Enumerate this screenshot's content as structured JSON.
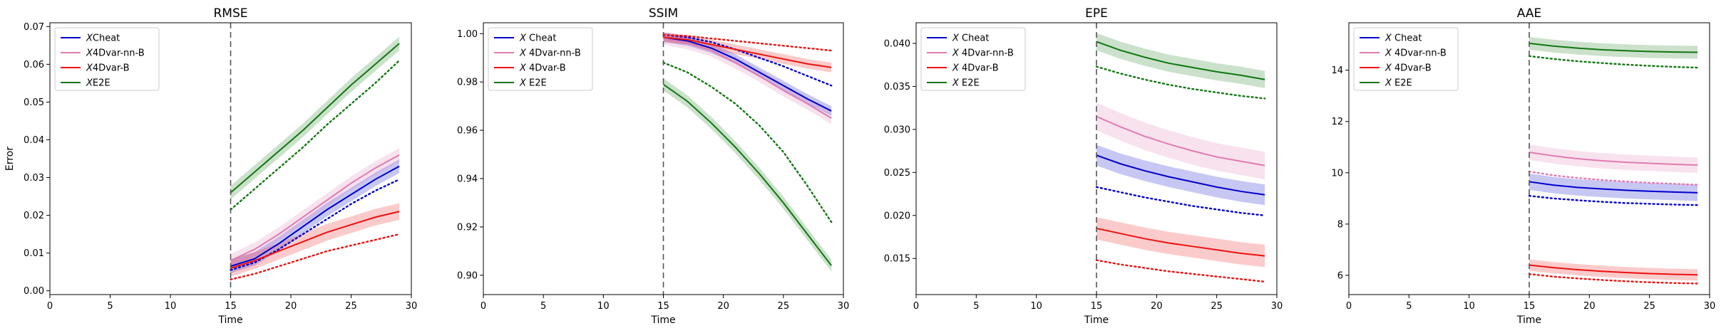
{
  "chart_data": [
    {
      "type": "line",
      "title": "RMSE",
      "xlabel": "Time",
      "ylabel": "Error",
      "xlim": [
        0,
        30
      ],
      "ylim": [
        -0.001,
        0.071
      ],
      "xticks": [
        0,
        5,
        10,
        15,
        20,
        25,
        30
      ],
      "yticks": [
        0.0,
        0.01,
        0.02,
        0.03,
        0.04,
        0.05,
        0.06,
        0.07
      ],
      "ytick_labels": [
        "0.00",
        "0.01",
        "0.02",
        "0.03",
        "0.04",
        "0.05",
        "0.06",
        "0.07"
      ],
      "vline_x": 15,
      "legend_position": "upper-left",
      "x": [
        15,
        17,
        19,
        21,
        23,
        25,
        27,
        29
      ],
      "series": [
        {
          "name": "XCheat",
          "italic_prefix": "X",
          "label_rest": "Cheat",
          "color": "#0000cc",
          "values": [
            0.0065,
            0.0085,
            0.0125,
            0.017,
            0.0215,
            0.0255,
            0.0295,
            0.033
          ],
          "band": 0.0018,
          "dotted": [
            0.0055,
            0.0075,
            0.011,
            0.015,
            0.019,
            0.023,
            0.0265,
            0.0295
          ]
        },
        {
          "name": "X4Dvar-nn-B",
          "italic_prefix": "X",
          "label_rest": "4Dvar-nn-B",
          "color": "#e07bb2",
          "values": [
            0.008,
            0.011,
            0.015,
            0.0195,
            0.024,
            0.0285,
            0.0325,
            0.036
          ],
          "band": 0.0018,
          "dotted": []
        },
        {
          "name": "X4Dvar-B",
          "italic_prefix": "X",
          "label_rest": "4Dvar-B",
          "color": "#ee1111",
          "values": [
            0.006,
            0.008,
            0.0105,
            0.013,
            0.0155,
            0.0175,
            0.0195,
            0.021
          ],
          "band": 0.0022,
          "dotted": [
            0.003,
            0.0045,
            0.0065,
            0.0085,
            0.0105,
            0.012,
            0.0135,
            0.015
          ]
        },
        {
          "name": "XE2E",
          "italic_prefix": "X",
          "label_rest": "E2E",
          "color": "#117711",
          "values": [
            0.026,
            0.0315,
            0.037,
            0.0425,
            0.0485,
            0.0545,
            0.06,
            0.0655
          ],
          "band": 0.0018,
          "dotted": [
            0.0215,
            0.027,
            0.0325,
            0.038,
            0.044,
            0.0495,
            0.055,
            0.061
          ]
        }
      ]
    },
    {
      "type": "line",
      "title": "SSIM",
      "xlabel": "Time",
      "ylabel": "",
      "xlim": [
        0,
        30
      ],
      "ylim": [
        0.892,
        1.0045
      ],
      "xticks": [
        0,
        5,
        10,
        15,
        20,
        25,
        30
      ],
      "yticks": [
        0.9,
        0.92,
        0.94,
        0.96,
        0.98,
        1.0
      ],
      "ytick_labels": [
        "0.90",
        "0.92",
        "0.94",
        "0.96",
        "0.98",
        "1.00"
      ],
      "vline_x": 15,
      "legend_position": "upper-left",
      "x": [
        15,
        17,
        19,
        21,
        23,
        25,
        27,
        29
      ],
      "series": [
        {
          "name": "X Cheat",
          "italic_prefix": "X",
          "label_rest": " Cheat",
          "color": "#0000cc",
          "values": [
            0.9985,
            0.997,
            0.994,
            0.9895,
            0.984,
            0.9785,
            0.973,
            0.968
          ],
          "band": 0.002,
          "dotted": [
            0.9995,
            0.9985,
            0.9965,
            0.9935,
            0.99,
            0.9865,
            0.9825,
            0.9785
          ]
        },
        {
          "name": "X 4Dvar-nn-B",
          "italic_prefix": "X",
          "label_rest": " 4Dvar-nn-B",
          "color": "#e07bb2",
          "values": [
            0.998,
            0.996,
            0.993,
            0.988,
            0.9825,
            0.9765,
            0.971,
            0.965
          ],
          "band": 0.0025,
          "dotted": []
        },
        {
          "name": "X 4Dvar-B",
          "italic_prefix": "X",
          "label_rest": " 4Dvar-B",
          "color": "#ee1111",
          "values": [
            0.9985,
            0.9975,
            0.9955,
            0.9935,
            0.9915,
            0.9895,
            0.9875,
            0.986
          ],
          "band": 0.002,
          "dotted": [
            0.9995,
            0.999,
            0.998,
            0.997,
            0.996,
            0.995,
            0.994,
            0.993
          ]
        },
        {
          "name": "X E2E",
          "italic_prefix": "X",
          "label_rest": " E2E",
          "color": "#117711",
          "values": [
            0.979,
            0.972,
            0.963,
            0.953,
            0.942,
            0.93,
            0.917,
            0.904
          ],
          "band": 0.0025,
          "dotted": [
            0.988,
            0.984,
            0.978,
            0.971,
            0.962,
            0.951,
            0.937,
            0.922
          ]
        }
      ]
    },
    {
      "type": "line",
      "title": "EPE",
      "xlabel": "Time",
      "ylabel": "",
      "xlim": [
        0,
        30
      ],
      "ylim": [
        0.0108,
        0.0424
      ],
      "xticks": [
        0,
        5,
        10,
        15,
        20,
        25,
        30
      ],
      "yticks": [
        0.015,
        0.02,
        0.025,
        0.03,
        0.035,
        0.04
      ],
      "ytick_labels": [
        "0.015",
        "0.020",
        "0.025",
        "0.030",
        "0.035",
        "0.040"
      ],
      "vline_x": 15,
      "legend_position": "upper-left",
      "x": [
        15,
        17,
        19,
        21,
        23,
        25,
        27,
        29
      ],
      "series": [
        {
          "name": "X Cheat",
          "italic_prefix": "X",
          "label_rest": " Cheat",
          "color": "#0000cc",
          "values": [
            0.027,
            0.026,
            0.0252,
            0.0245,
            0.0239,
            0.0233,
            0.0228,
            0.0224
          ],
          "band": 0.0012,
          "dotted": [
            0.0233,
            0.0227,
            0.0221,
            0.0216,
            0.0211,
            0.0207,
            0.0203,
            0.02
          ]
        },
        {
          "name": "X 4Dvar-nn-B",
          "italic_prefix": "X",
          "label_rest": " 4Dvar-nn-B",
          "color": "#e07bb2",
          "values": [
            0.0315,
            0.0303,
            0.0292,
            0.0283,
            0.0275,
            0.0268,
            0.0263,
            0.0258
          ],
          "band": 0.0016,
          "dotted": []
        },
        {
          "name": "X 4Dvar-B",
          "italic_prefix": "X",
          "label_rest": " 4Dvar-B",
          "color": "#ee1111",
          "values": [
            0.0185,
            0.0179,
            0.0173,
            0.0168,
            0.0164,
            0.016,
            0.0156,
            0.0153
          ],
          "band": 0.0013,
          "dotted": [
            0.0148,
            0.0143,
            0.0139,
            0.0135,
            0.0132,
            0.0129,
            0.0126,
            0.0123
          ]
        },
        {
          "name": "X E2E",
          "italic_prefix": "X",
          "label_rest": " E2E",
          "color": "#117711",
          "values": [
            0.0402,
            0.0392,
            0.0384,
            0.0377,
            0.0372,
            0.0367,
            0.0363,
            0.0358
          ],
          "band": 0.001,
          "dotted": [
            0.0373,
            0.0365,
            0.0358,
            0.0352,
            0.0347,
            0.0343,
            0.0339,
            0.0336
          ]
        }
      ]
    },
    {
      "type": "line",
      "title": "AAE",
      "xlabel": "Time",
      "ylabel": "",
      "xlim": [
        0,
        30
      ],
      "ylim": [
        5.25,
        15.85
      ],
      "xticks": [
        0,
        5,
        10,
        15,
        20,
        25,
        30
      ],
      "yticks": [
        6,
        8,
        10,
        12,
        14
      ],
      "ytick_labels": [
        "6",
        "8",
        "10",
        "12",
        "14"
      ],
      "vline_x": 15,
      "legend_position": "upper-left",
      "x": [
        15,
        17,
        19,
        21,
        23,
        25,
        27,
        29
      ],
      "series": [
        {
          "name": "X Cheat",
          "italic_prefix": "X",
          "label_rest": " Cheat",
          "color": "#0000cc",
          "values": [
            9.65,
            9.52,
            9.43,
            9.37,
            9.32,
            9.28,
            9.25,
            9.22
          ],
          "band": 0.32,
          "dotted": [
            9.1,
            9.0,
            8.93,
            8.87,
            8.82,
            8.79,
            8.76,
            8.74
          ]
        },
        {
          "name": "X 4Dvar-nn-B",
          "italic_prefix": "X",
          "label_rest": " 4Dvar-nn-B",
          "color": "#e07bb2",
          "values": [
            10.8,
            10.66,
            10.55,
            10.47,
            10.41,
            10.37,
            10.33,
            10.3
          ],
          "band": 0.3,
          "dotted": [
            10.05,
            9.9,
            9.8,
            9.72,
            9.66,
            9.61,
            9.57,
            9.53
          ]
        },
        {
          "name": "X 4Dvar-B",
          "italic_prefix": "X",
          "label_rest": " 4Dvar-B",
          "color": "#ee1111",
          "values": [
            6.4,
            6.3,
            6.22,
            6.16,
            6.11,
            6.07,
            6.04,
            6.02
          ],
          "band": 0.22,
          "dotted": [
            6.05,
            5.95,
            5.88,
            5.82,
            5.77,
            5.73,
            5.7,
            5.68
          ]
        },
        {
          "name": "X E2E",
          "italic_prefix": "X",
          "label_rest": " E2E",
          "color": "#117711",
          "values": [
            15.05,
            14.94,
            14.86,
            14.8,
            14.76,
            14.73,
            14.71,
            14.7
          ],
          "band": 0.25,
          "dotted": [
            14.55,
            14.44,
            14.35,
            14.28,
            14.22,
            14.17,
            14.13,
            14.1
          ]
        }
      ]
    }
  ]
}
